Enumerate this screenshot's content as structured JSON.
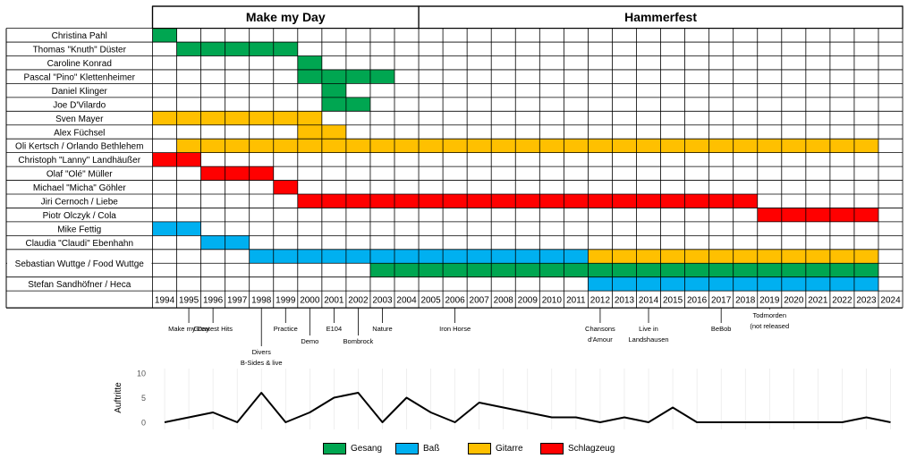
{
  "chart_data": {
    "type": "timeline",
    "title": "",
    "bands": [
      {
        "name": "Make my Day",
        "start": 1994,
        "end": 2004
      },
      {
        "name": "Hammerfest",
        "start": 2005,
        "end": 2024
      }
    ],
    "years": [
      1994,
      1995,
      1996,
      1997,
      1998,
      1999,
      2000,
      2001,
      2002,
      2003,
      2004,
      2005,
      2006,
      2007,
      2008,
      2009,
      2010,
      2011,
      2012,
      2013,
      2014,
      2015,
      2016,
      2017,
      2018,
      2019,
      2020,
      2021,
      2022,
      2023,
      2024
    ],
    "roles": {
      "gesang": {
        "label": "Gesang",
        "color": "#00a651"
      },
      "bass": {
        "label": "Baß",
        "color": "#00b0f0"
      },
      "gitarre": {
        "label": "Gitarre",
        "color": "#ffc000"
      },
      "schlagzeug": {
        "label": "Schlagzeug",
        "color": "#ff0000"
      }
    },
    "members": [
      {
        "name": "Christina Pahl",
        "subrows": 1,
        "spans": [
          {
            "role": "gesang",
            "from": 1994,
            "to": 1994
          }
        ]
      },
      {
        "name": "Thomas \"Knuth\" Düster",
        "subrows": 1,
        "spans": [
          {
            "role": "gesang",
            "from": 1995,
            "to": 1999
          }
        ]
      },
      {
        "name": "Caroline Konrad",
        "subrows": 1,
        "spans": [
          {
            "role": "gesang",
            "from": 2000,
            "to": 2000
          }
        ]
      },
      {
        "name": "Pascal \"Pino\" Klettenheimer",
        "subrows": 1,
        "spans": [
          {
            "role": "gesang",
            "from": 2000,
            "to": 2003
          }
        ]
      },
      {
        "name": "Daniel Klinger",
        "subrows": 1,
        "spans": [
          {
            "role": "gesang",
            "from": 2001,
            "to": 2001
          }
        ]
      },
      {
        "name": "Joe D'Vilardo",
        "subrows": 1,
        "spans": [
          {
            "role": "gesang",
            "from": 2001,
            "to": 2002
          }
        ]
      },
      {
        "name": "Sven Mayer",
        "subrows": 1,
        "spans": [
          {
            "role": "gitarre",
            "from": 1994,
            "to": 2000
          }
        ]
      },
      {
        "name": "Alex Füchsel",
        "subrows": 1,
        "spans": [
          {
            "role": "gitarre",
            "from": 2000,
            "to": 2001
          }
        ]
      },
      {
        "name": "Oli Kertsch / Orlando Bethlehem",
        "subrows": 1,
        "spans": [
          {
            "role": "gitarre",
            "from": 1995,
            "to": 2023
          }
        ]
      },
      {
        "name": "Christoph \"Lanny\" Landhäußer",
        "subrows": 1,
        "spans": [
          {
            "role": "schlagzeug",
            "from": 1994,
            "to": 1995
          }
        ]
      },
      {
        "name": "Olaf \"Olé\" Müller",
        "subrows": 1,
        "spans": [
          {
            "role": "schlagzeug",
            "from": 1996,
            "to": 1998
          }
        ]
      },
      {
        "name": "Michael \"Micha\" Göhler",
        "subrows": 1,
        "spans": [
          {
            "role": "schlagzeug",
            "from": 1999,
            "to": 1999
          }
        ]
      },
      {
        "name": "Jiri Cernoch / Liebe",
        "subrows": 1,
        "spans": [
          {
            "role": "schlagzeug",
            "from": 2000,
            "to": 2018
          }
        ]
      },
      {
        "name": "Piotr Olczyk / Cola",
        "subrows": 1,
        "spans": [
          {
            "role": "schlagzeug",
            "from": 2019,
            "to": 2023
          }
        ]
      },
      {
        "name": "Mike Fettig",
        "subrows": 1,
        "spans": [
          {
            "role": "bass",
            "from": 1994,
            "to": 1995
          }
        ]
      },
      {
        "name": "Claudia \"Claudi\" Ebenhahn",
        "subrows": 1,
        "spans": [
          {
            "role": "bass",
            "from": 1996,
            "to": 1997
          }
        ]
      },
      {
        "name": "Sebastian Wuttge / Food Wuttge",
        "subrows": 2,
        "spans": [
          {
            "role": "bass",
            "row": 0,
            "from": 1998,
            "to": 2011
          },
          {
            "role": "gitarre",
            "row": 0,
            "from": 2012,
            "to": 2023
          },
          {
            "role": "gesang",
            "row": 1,
            "from": 2003,
            "to": 2023
          }
        ]
      },
      {
        "name": "Stefan Sandhöfner / Heca",
        "subrows": 1,
        "spans": [
          {
            "role": "bass",
            "from": 2012,
            "to": 2023
          }
        ]
      }
    ],
    "releases": [
      {
        "year": 1995,
        "lines": [
          "Make my Day"
        ],
        "level": 1
      },
      {
        "year": 1996,
        "lines": [
          "Greatest Hits"
        ],
        "level": 1
      },
      {
        "year": 1998,
        "lines": [
          "Divers",
          "B-Sides & live"
        ],
        "level": 3
      },
      {
        "year": 1999,
        "lines": [
          "Practice"
        ],
        "level": 1
      },
      {
        "year": 2000,
        "lines": [
          "Demo"
        ],
        "level": 2
      },
      {
        "year": 2001,
        "lines": [
          "E104"
        ],
        "level": 1
      },
      {
        "year": 2002,
        "lines": [
          "Bombrock"
        ],
        "level": 2
      },
      {
        "year": 2003,
        "lines": [
          "Nature"
        ],
        "level": 1
      },
      {
        "year": 2006,
        "lines": [
          "Iron Horse"
        ],
        "level": 1
      },
      {
        "year": 2012,
        "lines": [
          "Chansons",
          "d'Amour"
        ],
        "level": 1
      },
      {
        "year": 2014,
        "lines": [
          "Live in",
          "Landshausen"
        ],
        "level": 1
      },
      {
        "year": 2017,
        "lines": [
          "BeBob"
        ],
        "level": 1
      },
      {
        "year": 2019,
        "lines": [
          "Todmorden",
          "(not released"
        ],
        "level": 0
      }
    ],
    "performances": {
      "ylabel": "Auftritte",
      "ylim": [
        0,
        10
      ],
      "yticks": [
        0,
        5,
        10
      ],
      "x": [
        1994,
        1995,
        1996,
        1997,
        1998,
        1999,
        2000,
        2001,
        2002,
        2003,
        2004,
        2005,
        2006,
        2007,
        2008,
        2009,
        2010,
        2011,
        2012,
        2013,
        2014,
        2015,
        2016,
        2017,
        2018,
        2019,
        2020,
        2021,
        2022,
        2023,
        2024
      ],
      "y": [
        0,
        1,
        2,
        0,
        6,
        0,
        2,
        5,
        6,
        0,
        5,
        2,
        0,
        4,
        3,
        2,
        1,
        1,
        0,
        1,
        0,
        3,
        0,
        0,
        0,
        0,
        0,
        0,
        0,
        1,
        0
      ]
    },
    "legend": {
      "items": [
        {
          "role": "gesang",
          "label": "Gesang"
        },
        {
          "role": "bass",
          "label": "Baß"
        },
        {
          "role": "gitarre",
          "label": "Gitarre"
        },
        {
          "role": "schlagzeug",
          "label": "Schlagzeug"
        }
      ]
    }
  }
}
